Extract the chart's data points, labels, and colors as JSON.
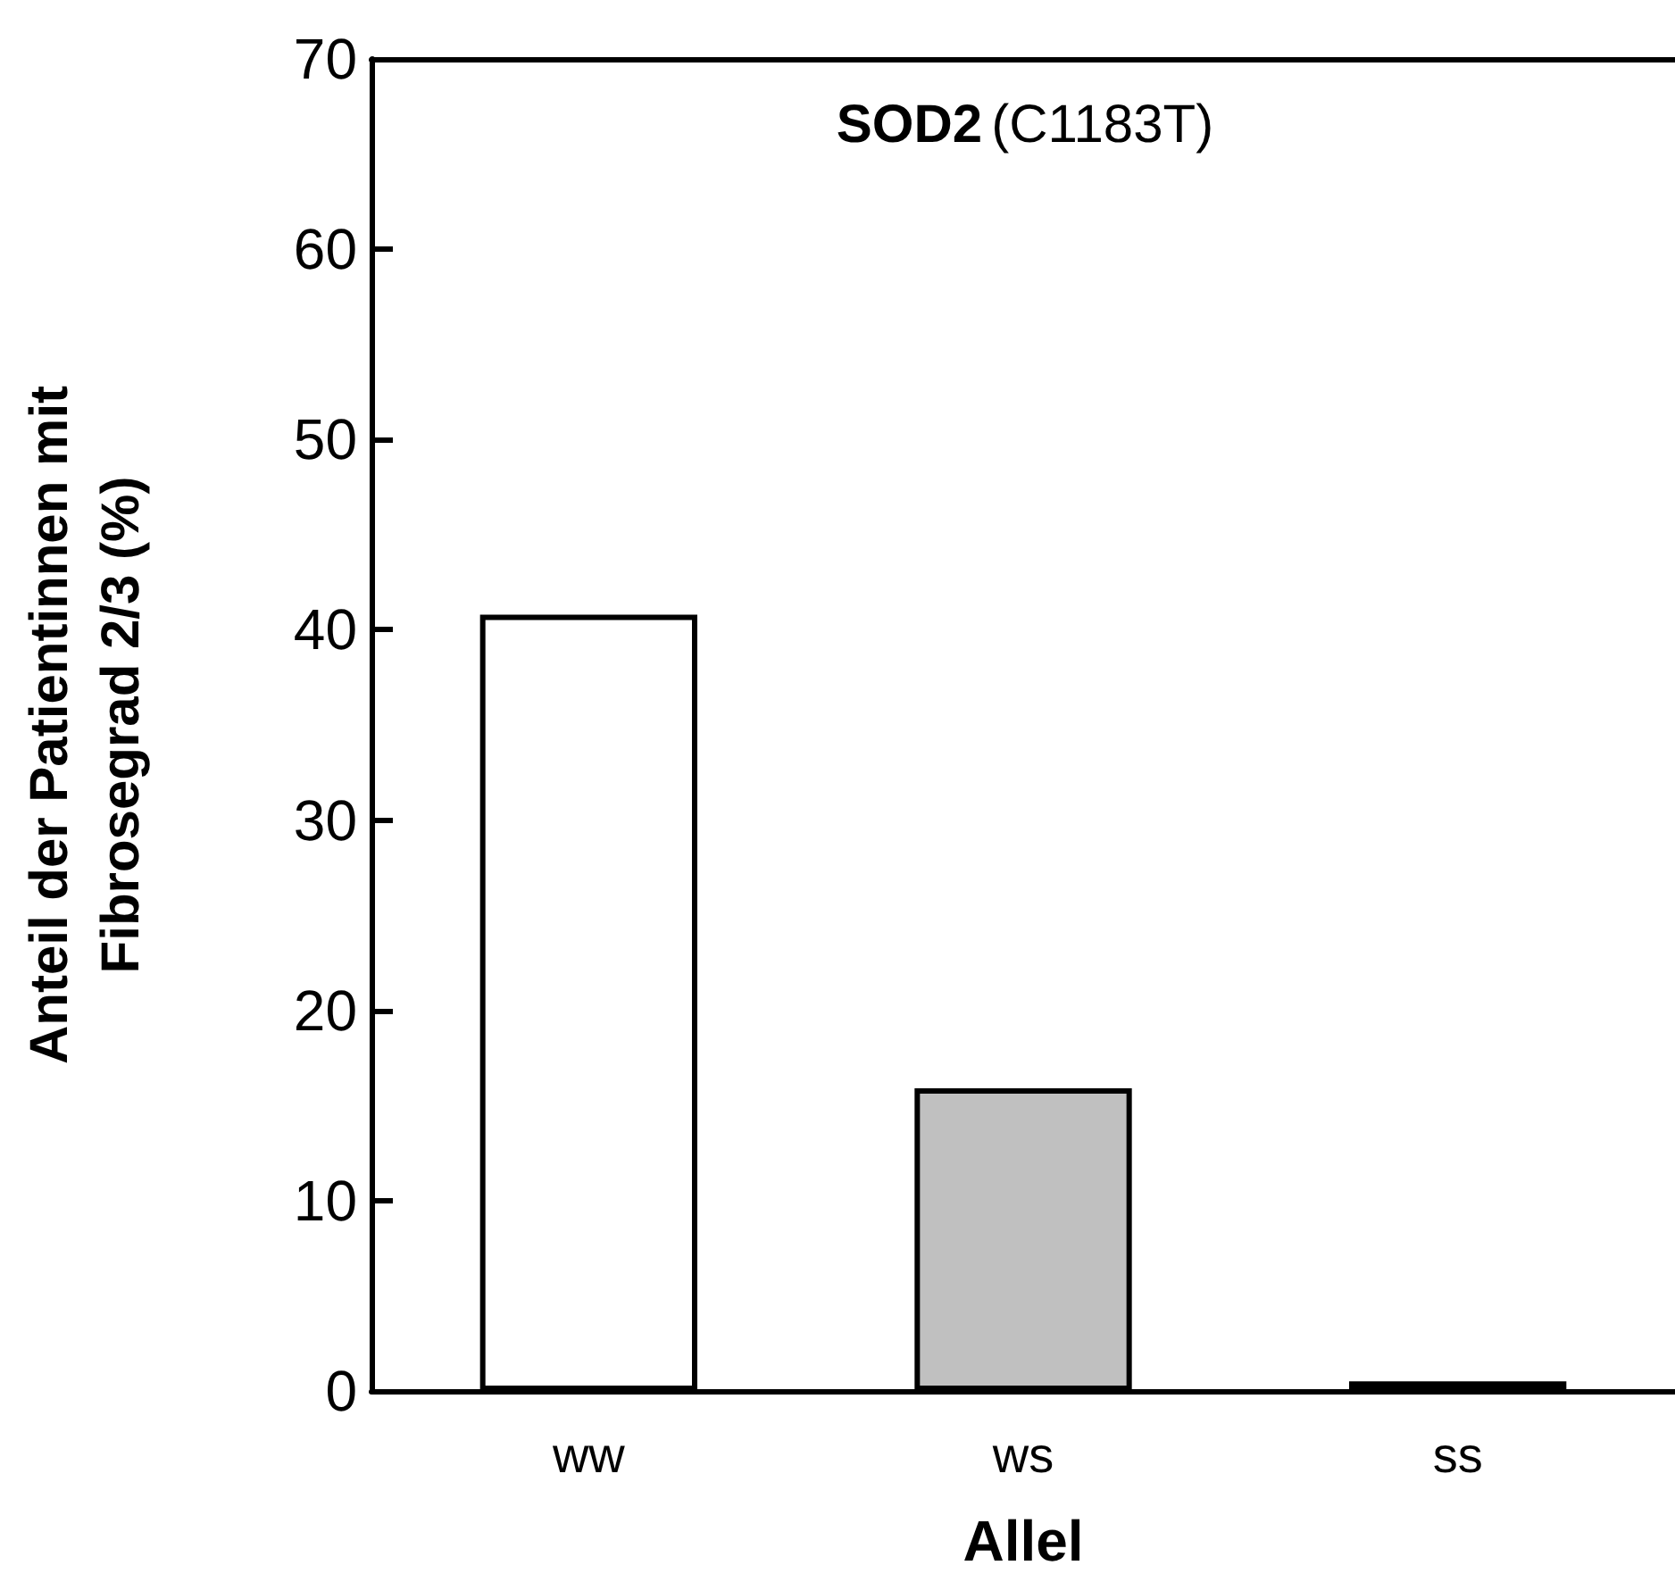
{
  "chart_data": {
    "type": "bar",
    "title": "SOD2 (C1183T)",
    "xlabel": "Allel",
    "ylabel": "Anteil der Patientinnen mit\nFibrosegrad 2/3 (%)",
    "categories": [
      "ww",
      "ws",
      "ss"
    ],
    "values": [
      40.8,
      15.9,
      0.5
    ],
    "colors": [
      "#ffffff",
      "#c0c0c0",
      "#000000"
    ],
    "ylim": [
      0,
      70
    ],
    "yticks": [
      0,
      10,
      20,
      30,
      40,
      50,
      60,
      70
    ]
  }
}
